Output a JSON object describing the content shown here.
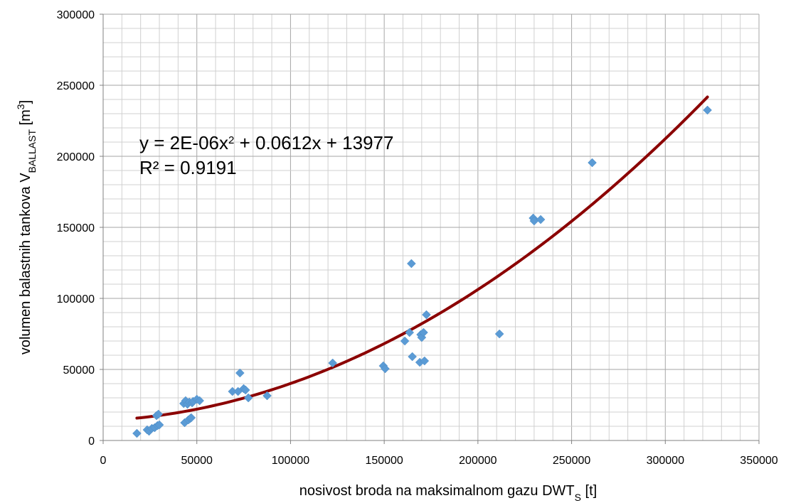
{
  "chart_data": {
    "type": "scatter",
    "title": "",
    "xlabel": {
      "main": "nosivost broda na maksimalnom gazu DWT",
      "sub": "S",
      "unit": " [t]"
    },
    "ylabel": {
      "main": "volumen balastnih tankova V",
      "sub": "BALLAST",
      "unit_prefix": " [m",
      "unit_sup": "3",
      "unit_suffix": "]"
    },
    "xlim": [
      0,
      350000
    ],
    "ylim": [
      0,
      300000
    ],
    "x_ticks": [
      "0",
      "50000",
      "100000",
      "150000",
      "200000",
      "250000",
      "300000",
      "350000"
    ],
    "y_ticks": [
      "0",
      "50000",
      "100000",
      "150000",
      "200000",
      "250000",
      "300000"
    ],
    "x_major_step": 50000,
    "x_minor_step": 10000,
    "y_major_step": 50000,
    "y_minor_step": 10000,
    "grid": true,
    "legend": "none",
    "series": [
      {
        "marker": "diamond",
        "color": "#5B9BD5",
        "points": [
          [
            18000,
            5000
          ],
          [
            23500,
            7500
          ],
          [
            24500,
            6500
          ],
          [
            26000,
            8500
          ],
          [
            27500,
            9000
          ],
          [
            28500,
            17500
          ],
          [
            29500,
            18500
          ],
          [
            29000,
            10500
          ],
          [
            30000,
            11000
          ],
          [
            43000,
            26000
          ],
          [
            44000,
            28000
          ],
          [
            45000,
            25500
          ],
          [
            46000,
            27000
          ],
          [
            47500,
            26500
          ],
          [
            43500,
            12500
          ],
          [
            45500,
            14500
          ],
          [
            46500,
            15500
          ],
          [
            47000,
            16000
          ],
          [
            48000,
            27500
          ],
          [
            50000,
            29000
          ],
          [
            51500,
            28000
          ],
          [
            69000,
            34500
          ],
          [
            72000,
            34500
          ],
          [
            73000,
            47500
          ],
          [
            75000,
            36500
          ],
          [
            76000,
            35500
          ],
          [
            77500,
            30000
          ],
          [
            87500,
            31500
          ],
          [
            122500,
            54500
          ],
          [
            149500,
            52500
          ],
          [
            150500,
            50500
          ],
          [
            161000,
            70000
          ],
          [
            163500,
            76000
          ],
          [
            164500,
            124500
          ],
          [
            165000,
            59000
          ],
          [
            169000,
            55000
          ],
          [
            169500,
            74500
          ],
          [
            170000,
            72500
          ],
          [
            171000,
            76000
          ],
          [
            171500,
            56000
          ],
          [
            172500,
            88500
          ],
          [
            211500,
            75000
          ],
          [
            229500,
            156500
          ],
          [
            230000,
            154500
          ],
          [
            233500,
            155500
          ],
          [
            261000,
            195500
          ],
          [
            322500,
            232500
          ]
        ]
      }
    ],
    "trendline": {
      "type": "polynomial",
      "coefficients": [
        2e-06,
        0.0612,
        13977
      ],
      "x_range": [
        18000,
        322500
      ],
      "color": "#8B0000",
      "equation_label": {
        "prefix": "y = 2E-06x",
        "sup": "2",
        "suffix": " + 0.0612x + 13977"
      },
      "r2_label": "R² = 0.9191"
    }
  }
}
